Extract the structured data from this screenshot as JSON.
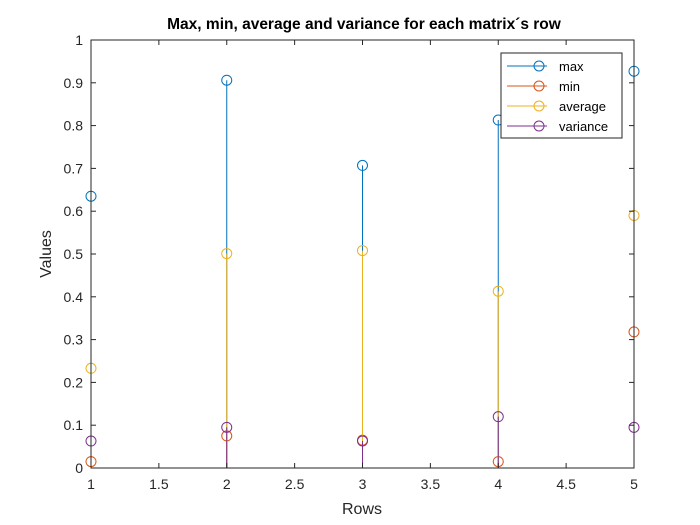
{
  "chart_data": {
    "type": "stem",
    "title": "Max, min, average and variance for each matrix´s row",
    "xlabel": "Rows",
    "ylabel": "Values",
    "xlim": [
      1,
      5
    ],
    "ylim": [
      0,
      1
    ],
    "x_ticks": [
      "1",
      "1.5",
      "2",
      "2.5",
      "3",
      "3.5",
      "4",
      "4.5",
      "5"
    ],
    "y_ticks": [
      "0",
      "0.1",
      "0.2",
      "0.3",
      "0.4",
      "0.5",
      "0.6",
      "0.7",
      "0.8",
      "0.9",
      "1"
    ],
    "grid": false,
    "legend_position": "top-right",
    "x": [
      1,
      2,
      3,
      4,
      5
    ],
    "series": [
      {
        "name": "max",
        "color": "#0072BD",
        "values": [
          0.635,
          0.906,
          0.707,
          0.813,
          0.927
        ]
      },
      {
        "name": "min",
        "color": "#D95319",
        "values": [
          0.015,
          0.075,
          0.065,
          0.015,
          0.318
        ]
      },
      {
        "name": "average",
        "color": "#EDB120",
        "values": [
          0.233,
          0.501,
          0.508,
          0.413,
          0.59
        ]
      },
      {
        "name": "variance",
        "color": "#7E2F8E",
        "values": [
          0.063,
          0.095,
          0.063,
          0.12,
          0.095
        ]
      }
    ]
  }
}
